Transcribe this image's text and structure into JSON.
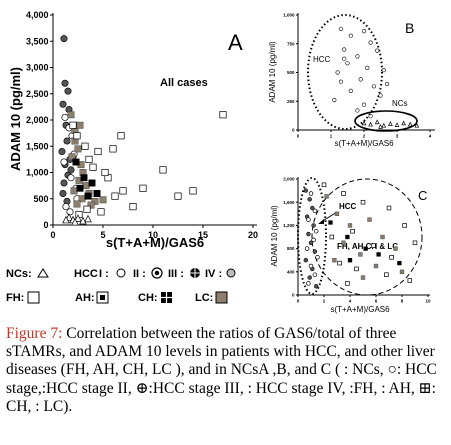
{
  "chart_data": [
    {
      "panel_label": "A",
      "type": "scatter",
      "annotation": "All cases",
      "xlabel": "s(T+A+M)/GAS6",
      "ylabel": "ADAM 10 (pg/ml)",
      "xlim": [
        0,
        20
      ],
      "ylim": [
        0,
        4000
      ],
      "x_ticks": [
        "0",
        "5",
        "10",
        "15",
        "20"
      ],
      "y_ticks": [
        "0",
        "500",
        "1,000",
        "1,500",
        "2,000",
        "2,500",
        "3,000",
        "3,500",
        "4,000"
      ],
      "series": [
        {
          "marker": "hcc-filled-circle",
          "points": [
            [
              1.1,
              3550
            ],
            [
              1.2,
              2700
            ],
            [
              1.5,
              2550
            ],
            [
              1.0,
              2300
            ],
            [
              1.6,
              2200
            ],
            [
              1.3,
              1900
            ],
            [
              1.4,
              1600
            ],
            [
              0.9,
              1400
            ],
            [
              1.7,
              1250
            ],
            [
              1.2,
              1150
            ],
            [
              1.5,
              950
            ],
            [
              1.1,
              800
            ],
            [
              1.8,
              1050
            ],
            [
              2.0,
              1300
            ],
            [
              1.0,
              600
            ],
            [
              1.4,
              450
            ]
          ]
        },
        {
          "marker": "hcc-open-circle",
          "points": [
            [
              1.2,
              2050
            ],
            [
              1.6,
              1850
            ],
            [
              1.9,
              1700
            ],
            [
              2.1,
              1350
            ],
            [
              1.1,
              1200
            ],
            [
              1.8,
              900
            ],
            [
              2.3,
              700
            ],
            [
              1.3,
              350
            ],
            [
              1.7,
              250
            ],
            [
              2.4,
              500
            ]
          ]
        },
        {
          "marker": "square-dark-fill",
          "points": [
            [
              1.8,
              2100
            ],
            [
              2.2,
              1600
            ],
            [
              2.5,
              1450
            ],
            [
              1.9,
              1300
            ],
            [
              2.8,
              1150
            ],
            [
              3.0,
              1000
            ],
            [
              2.6,
              850
            ],
            [
              3.3,
              750
            ],
            [
              2.1,
              650
            ],
            [
              3.6,
              600
            ],
            [
              2.9,
              500
            ],
            [
              4.2,
              450
            ],
            [
              2.4,
              400
            ],
            [
              5.0,
              480
            ],
            [
              3.8,
              380
            ],
            [
              2.2,
              1800
            ],
            [
              2.7,
              1900
            ]
          ]
        },
        {
          "marker": "square-open",
          "points": [
            [
              2.0,
              1900
            ],
            [
              2.4,
              1700
            ],
            [
              3.2,
              1500
            ],
            [
              4.5,
              1400
            ],
            [
              6.0,
              1450
            ],
            [
              6.8,
              1700
            ],
            [
              3.6,
              1250
            ],
            [
              4.0,
              1100
            ],
            [
              5.5,
              900
            ],
            [
              7.0,
              650
            ],
            [
              8.0,
              350
            ],
            [
              3.4,
              300
            ],
            [
              4.8,
              250
            ],
            [
              2.6,
              200
            ],
            [
              11.0,
              1050
            ],
            [
              12.5,
              550
            ],
            [
              14.0,
              650
            ],
            [
              17.0,
              2100
            ],
            [
              5.2,
              1000
            ],
            [
              6.2,
              550
            ],
            [
              9.0,
              700
            ]
          ]
        },
        {
          "marker": "square-cross",
          "points": [
            [
              2.3,
              1200
            ],
            [
              3.1,
              900
            ],
            [
              3.9,
              800
            ],
            [
              2.7,
              700
            ],
            [
              4.4,
              600
            ],
            [
              3.5,
              550
            ]
          ]
        },
        {
          "marker": "nc-triangle",
          "points": [
            [
              1.6,
              150
            ],
            [
              2.0,
              100
            ],
            [
              2.5,
              130
            ],
            [
              3.0,
              80
            ],
            [
              1.3,
              100
            ],
            [
              2.2,
              60
            ],
            [
              3.5,
              120
            ]
          ]
        }
      ]
    },
    {
      "panel_label": "B",
      "type": "scatter",
      "xlabel": "s(T+A+M)/GAS6",
      "ylabel": "ADAM 10 (pg/ml)",
      "xlim": [
        0,
        4
      ],
      "ylim": [
        0,
        1000
      ],
      "x_ticks": [
        "0",
        "1",
        "2",
        "3",
        "4"
      ],
      "y_ticks": [
        "0",
        "250",
        "500",
        "750",
        "1,000"
      ],
      "annotations": [
        "HCC",
        "NCs"
      ],
      "series": [
        {
          "marker": "hcc-mixed",
          "points": [
            [
              1.3,
              880
            ],
            [
              1.6,
              820
            ],
            [
              2.0,
              860
            ],
            [
              2.2,
              760
            ],
            [
              1.4,
              700
            ],
            [
              1.8,
              640
            ],
            [
              2.4,
              690
            ],
            [
              1.5,
              580
            ],
            [
              2.1,
              540
            ],
            [
              1.2,
              500
            ],
            [
              2.6,
              520
            ],
            [
              1.9,
              440
            ],
            [
              1.3,
              420
            ],
            [
              2.3,
              380
            ],
            [
              1.6,
              340
            ],
            [
              2.5,
              300
            ],
            [
              1.1,
              260
            ],
            [
              2.0,
              220
            ],
            [
              1.8,
              170
            ],
            [
              2.2,
              120
            ],
            [
              1.4,
              620
            ],
            [
              2.7,
              400
            ]
          ]
        },
        {
          "marker": "nc-triangle",
          "points": [
            [
              2.0,
              60
            ],
            [
              2.2,
              50
            ],
            [
              2.4,
              70
            ],
            [
              2.6,
              40
            ],
            [
              2.8,
              55
            ],
            [
              3.0,
              45
            ],
            [
              3.2,
              60
            ],
            [
              3.4,
              50
            ],
            [
              2.5,
              30
            ],
            [
              3.6,
              40
            ]
          ]
        }
      ]
    },
    {
      "panel_label": "C",
      "type": "scatter",
      "xlabel": "s(T+A+M)/GAS6",
      "ylabel": "ADAM 10 (pg/ml)",
      "xlim": [
        0,
        10
      ],
      "ylim": [
        0,
        2000
      ],
      "x_ticks": [
        "0",
        "2",
        "4",
        "6",
        "8",
        "10"
      ],
      "y_ticks": [
        "0",
        "400",
        "800",
        "1,200",
        "1,600",
        "2,000"
      ],
      "annotations": [
        "HCC",
        "FH, AH,CH & LC"
      ],
      "series": [
        {
          "marker": "hcc-filled-circle",
          "points": [
            [
              0.6,
              1800
            ],
            [
              0.9,
              1650
            ],
            [
              1.1,
              1500
            ],
            [
              0.7,
              1350
            ],
            [
              1.2,
              1200
            ],
            [
              0.8,
              1050
            ],
            [
              1.0,
              900
            ],
            [
              1.3,
              750
            ],
            [
              0.6,
              600
            ],
            [
              1.1,
              450
            ],
            [
              0.9,
              300
            ],
            [
              1.4,
              150
            ]
          ]
        },
        {
          "marker": "hcc-open-circle",
          "points": [
            [
              1.0,
              1750
            ],
            [
              1.3,
              1450
            ],
            [
              0.8,
              1300
            ],
            [
              1.4,
              1100
            ],
            [
              1.2,
              950
            ],
            [
              0.7,
              800
            ],
            [
              1.5,
              650
            ],
            [
              1.0,
              500
            ],
            [
              1.3,
              350
            ],
            [
              0.8,
              200
            ]
          ]
        },
        {
          "marker": "square-dark-fill",
          "points": [
            [
              2.2,
              1700
            ],
            [
              3.0,
              1400
            ],
            [
              4.0,
              1200
            ],
            [
              5.5,
              1300
            ],
            [
              6.5,
              1000
            ],
            [
              3.5,
              900
            ],
            [
              4.8,
              700
            ],
            [
              7.5,
              800
            ],
            [
              2.8,
              600
            ],
            [
              6.0,
              500
            ],
            [
              8.0,
              400
            ],
            [
              5.0,
              300
            ]
          ]
        },
        {
          "marker": "square-open",
          "points": [
            [
              2.0,
              1900
            ],
            [
              3.5,
              1750
            ],
            [
              5.0,
              1600
            ],
            [
              7.0,
              1500
            ],
            [
              8.2,
              1200
            ],
            [
              4.2,
              1100
            ],
            [
              2.6,
              1000
            ],
            [
              5.8,
              850
            ],
            [
              7.2,
              650
            ],
            [
              3.2,
              550
            ],
            [
              4.5,
              450
            ],
            [
              6.8,
              350
            ],
            [
              8.6,
              250
            ],
            [
              3.8,
              200
            ],
            [
              9.0,
              900
            ]
          ]
        },
        {
          "marker": "square-cross",
          "points": [
            [
              2.5,
              1250
            ],
            [
              3.8,
              1000
            ],
            [
              5.2,
              800
            ],
            [
              6.2,
              700
            ],
            [
              4.0,
              600
            ],
            [
              7.8,
              550
            ]
          ]
        }
      ]
    }
  ],
  "legend": {
    "ncs_label": "NCs:",
    "hcc_prefix": "HCC",
    "stage1_label": "I :",
    "stage2_label": "II :",
    "stage3_label": "III :",
    "stage4_label": "IV :",
    "fh_label": "FH:",
    "ah_label": "AH:",
    "ch_label": "CH:",
    "lc_label": "LC:"
  },
  "colors": {
    "axis": "#000000",
    "marker_dark": "#555555",
    "marker_lc": "#8c7f6e",
    "caption_label": "#c0392b"
  },
  "caption": {
    "label": "Figure 7:",
    "text": " Correlation between the ratios of GAS6/total of three sTAMRs, and ADAM 10 levels in patients with HCC, and other liver diseases (FH, AH, CH, LC ), and in NCsA ,B, and C ( : NCs, ○: HCC stage,:HCC stage II, ⊕:HCC stage III, : HCC stage IV, :FH, : AH, ⊞: CH, : LC)."
  }
}
